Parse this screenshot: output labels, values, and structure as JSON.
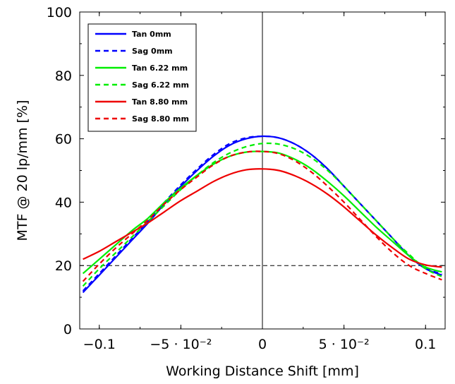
{
  "chart_data": {
    "type": "line",
    "xlabel": "Working Distance Shift [mm]",
    "ylabel": "MTF @ 20 lp/mm [%]",
    "xlim": [
      -0.112,
      0.112
    ],
    "ylim": [
      0,
      100
    ],
    "x_ticks": [
      {
        "value": -0.1,
        "label": "−0.1"
      },
      {
        "value": -0.05,
        "label": "−5 · 10⁻²"
      },
      {
        "value": 0,
        "label": "0"
      },
      {
        "value": 0.05,
        "label": "5 · 10⁻²"
      },
      {
        "value": 0.1,
        "label": "0.1"
      }
    ],
    "y_ticks": [
      {
        "value": 0,
        "label": "0"
      },
      {
        "value": 20,
        "label": "20"
      },
      {
        "value": 40,
        "label": "40"
      },
      {
        "value": 60,
        "label": "60"
      },
      {
        "value": 80,
        "label": "80"
      },
      {
        "value": 100,
        "label": "100"
      }
    ],
    "reference_line_y": 20,
    "reference_line_x": 0,
    "legend_position": "top-left",
    "x": [
      -0.11,
      -0.1,
      -0.09,
      -0.08,
      -0.07,
      -0.06,
      -0.05,
      -0.04,
      -0.03,
      -0.02,
      -0.01,
      0,
      0.01,
      0.02,
      0.03,
      0.04,
      0.05,
      0.06,
      0.07,
      0.08,
      0.09,
      0.1,
      0.11
    ],
    "series": [
      {
        "name": "Tan 0mm",
        "color": "#0000ff",
        "dash": "solid",
        "values": [
          11.5,
          17.0,
          22.5,
          28.0,
          33.5,
          39.5,
          45.0,
          50.0,
          54.5,
          58.0,
          60.0,
          60.8,
          60.3,
          58.3,
          55.0,
          50.5,
          45.0,
          39.5,
          34.0,
          28.5,
          23.0,
          19.0,
          17.0
        ]
      },
      {
        "name": "Sag 0mm",
        "color": "#0000ff",
        "dash": "dashed",
        "values": [
          12.0,
          17.5,
          23.0,
          28.5,
          34.0,
          40.0,
          45.5,
          50.5,
          55.0,
          58.5,
          60.3,
          60.8,
          60.3,
          58.3,
          55.0,
          50.5,
          45.0,
          39.5,
          34.0,
          28.5,
          23.0,
          19.2,
          17.3
        ]
      },
      {
        "name": "Tan 6.22 mm",
        "color": "#00ee00",
        "dash": "solid",
        "values": [
          17.5,
          22.0,
          26.5,
          31.0,
          35.0,
          40.0,
          44.5,
          48.5,
          52.0,
          54.5,
          55.8,
          56.0,
          55.5,
          53.5,
          50.5,
          46.5,
          42.0,
          37.0,
          32.0,
          27.5,
          23.0,
          19.5,
          18.0
        ]
      },
      {
        "name": "Sag 6.22 mm",
        "color": "#00ee00",
        "dash": "dashed",
        "values": [
          13.5,
          19.0,
          24.0,
          29.0,
          34.0,
          39.0,
          44.0,
          48.5,
          52.5,
          55.5,
          57.5,
          58.5,
          58.3,
          56.8,
          54.0,
          50.0,
          45.0,
          39.5,
          34.0,
          28.5,
          23.5,
          19.0,
          16.5
        ]
      },
      {
        "name": "Tan 8.80 mm",
        "color": "#ee0000",
        "dash": "solid",
        "values": [
          22.0,
          24.5,
          27.5,
          30.5,
          33.5,
          37.0,
          40.5,
          43.5,
          46.5,
          48.8,
          50.2,
          50.5,
          50.0,
          48.3,
          45.8,
          42.5,
          38.5,
          34.0,
          29.5,
          25.5,
          22.0,
          20.2,
          19.5
        ]
      },
      {
        "name": "Sag 8.80 mm",
        "color": "#ee0000",
        "dash": "dashed",
        "values": [
          15.0,
          20.5,
          25.5,
          30.0,
          34.5,
          39.5,
          44.0,
          48.0,
          51.8,
          54.5,
          55.8,
          56.0,
          55.3,
          53.0,
          49.5,
          45.0,
          40.0,
          34.5,
          29.0,
          24.0,
          20.0,
          17.5,
          15.5
        ]
      }
    ]
  }
}
